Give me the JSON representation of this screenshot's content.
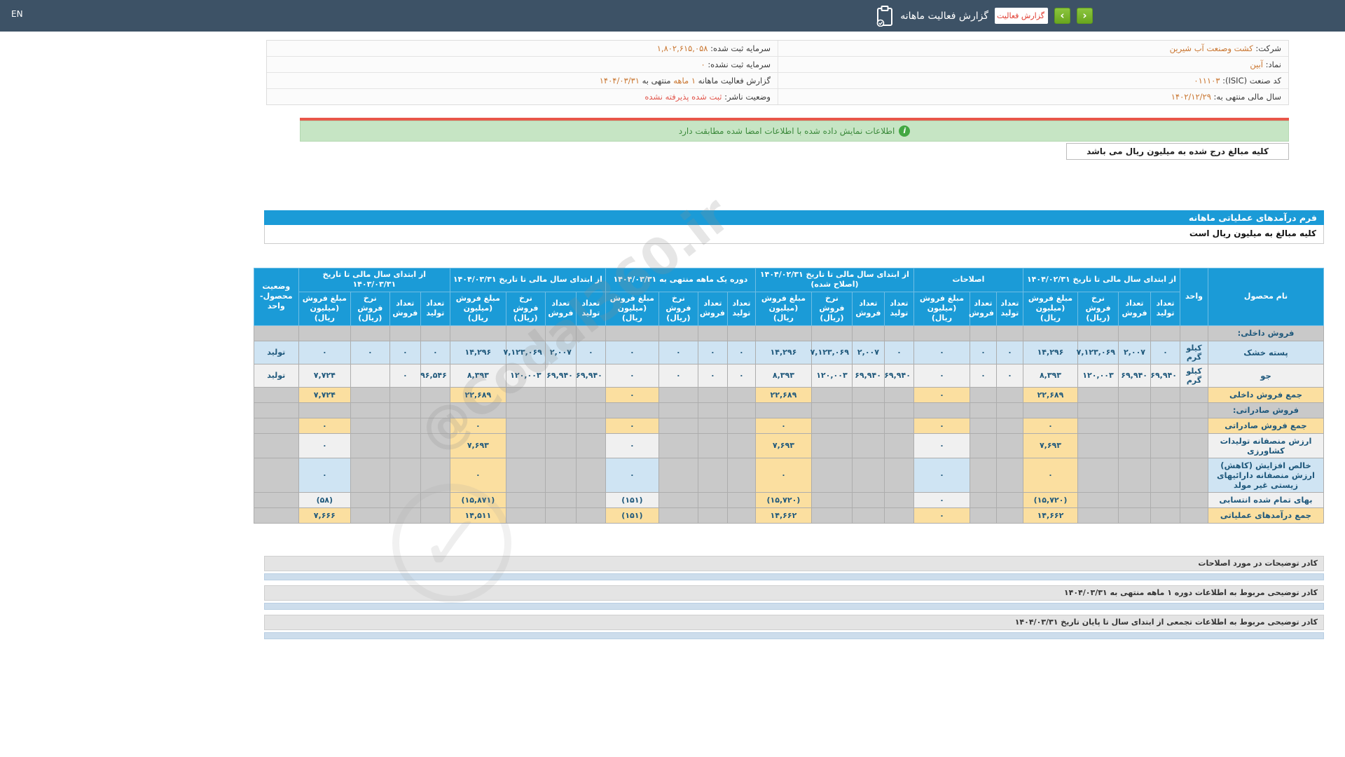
{
  "topbar": {
    "lang": "EN",
    "title": "گزارش فعالیت ماهانه",
    "dropdown_value": "گزارش فعالیت م",
    "prev_label": "‹",
    "next_label": "›"
  },
  "company": {
    "rows": [
      {
        "r_label": "شرکت:",
        "r_value": "کشت وصنعت آب شیرین",
        "l_label": "سرمایه ثبت شده:",
        "l_value": "۱,۸۰۲,۶۱۵,۰۵۸"
      },
      {
        "r_label": "نماد:",
        "r_value": "آبین",
        "l_label": "سرمایه ثبت نشده:",
        "l_value": "۰"
      },
      {
        "r_label": "کد صنعت (ISIC):",
        "r_value": "۰۱۱۱۰۳"
      },
      {
        "r_label": "سال مالی منتهی به:",
        "r_value": "۱۴۰۲/۱۲/۲۹",
        "l_label": "وضعیت ناشر:",
        "l_value": "ثبت شده پذیرفته نشده"
      }
    ],
    "report_label": "گزارش فعالیت ماهانه",
    "report_period": "۱ ماهه",
    "report_join": "منتهی به",
    "report_date": "۱۴۰۴/۰۳/۳۱"
  },
  "banner": {
    "text": "اطلاعات نمایش داده شده با اطلاعات امضا شده مطابقت دارد",
    "icon": "info-icon",
    "icon_glyph": "i"
  },
  "units_note": "کلیه مبالغ درج شده به میلیون ریال می باشد",
  "form": {
    "title": "فرم درآمدهای عملیاتی ماهانه",
    "subtitle": "کلیه مبالغ به میلیون ریال است"
  },
  "table": {
    "product_col": "نام محصول",
    "unit_col": "واحد",
    "status_col": "وضعیت محصول-واحد",
    "groups": [
      {
        "label": "از ابتدای سال مالی تا تاریخ ۱۴۰۴/۰۲/۳۱",
        "subs": [
          "تعداد تولید",
          "تعداد فروش",
          "نرخ فروش (ریال)",
          "مبلغ فروش (میلیون ریال)"
        ]
      },
      {
        "label": "اصلاحات",
        "subs": [
          "تعداد تولید",
          "تعداد فروش",
          "مبلغ فروش (میلیون ریال)"
        ]
      },
      {
        "label": "از ابتدای سال مالی تا تاریخ ۱۴۰۴/۰۲/۳۱ (اصلاح شده)",
        "subs": [
          "تعداد تولید",
          "تعداد فروش",
          "نرخ فروش (ریال)",
          "مبلغ فروش (میلیون ریال)"
        ]
      },
      {
        "label": "دوره یک ماهه منتهی به ۱۴۰۴/۰۳/۳۱",
        "subs": [
          "تعداد تولید",
          "تعداد فروش",
          "نرخ فروش (ریال)",
          "مبلغ فروش (میلیون ریال)"
        ]
      },
      {
        "label": "از ابتدای سال مالی تا تاریخ ۱۴۰۴/۰۳/۳۱",
        "subs": [
          "تعداد تولید",
          "تعداد فروش",
          "نرخ فروش (ریال)",
          "مبلغ فروش (میلیون ریال)"
        ]
      },
      {
        "label": "از ابتدای سال مالی تا تاریخ ۱۴۰۳/۰۳/۳۱",
        "subs": [
          "تعداد تولید",
          "تعداد فروش",
          "نرخ فروش (ریال)",
          "مبلغ فروش (میلیون ریال)"
        ]
      }
    ],
    "rows": [
      {
        "type": "section",
        "name": "فروش داخلی:"
      },
      {
        "type": "product",
        "name": "پسته خشک",
        "unit": "کیلو گرم",
        "status": "تولید",
        "bg": "blue",
        "cells": [
          "۰",
          "۲,۰۰۷",
          "۷,۱۲۳,۰۶۹",
          "۱۴,۲۹۶",
          "۰",
          "۰",
          "۰",
          "۰",
          "۲,۰۰۷",
          "۷,۱۲۳,۰۶۹",
          "۱۴,۲۹۶",
          "۰",
          "۰",
          "۰",
          "۰",
          "۰",
          "۲,۰۰۷",
          "۷,۱۲۳,۰۶۹",
          "۱۴,۲۹۶",
          "۰",
          "۰",
          "۰",
          "۰"
        ]
      },
      {
        "type": "product",
        "name": "جو",
        "unit": "کیلو گرم",
        "status": "تولید",
        "bg": "plain",
        "cells": [
          "۶۹,۹۴۰",
          "۶۹,۹۴۰",
          "۱۲۰,۰۰۳",
          "۸,۳۹۳",
          "۰",
          "۰",
          "۰",
          "۶۹,۹۴۰",
          "۶۹,۹۴۰",
          "۱۲۰,۰۰۳",
          "۸,۳۹۳",
          "۰",
          "۰",
          "۰",
          "۰",
          "۶۹,۹۴۰",
          "۶۹,۹۴۰",
          "۱۲۰,۰۰۳",
          "۸,۳۹۳",
          "۹۶,۵۴۶",
          "۰",
          "",
          "۷,۷۲۴"
        ]
      },
      {
        "type": "summary",
        "name": "جمع فروش داخلی",
        "label_bg": "yellow",
        "amount_bg": "yellow",
        "amounts": [
          "۲۲,۶۸۹",
          "۰",
          "۲۲,۶۸۹",
          "۰",
          "۲۲,۶۸۹",
          "۷,۷۲۴"
        ]
      },
      {
        "type": "section",
        "name": "فروش صادراتی:"
      },
      {
        "type": "summary",
        "name": "جمع فروش صادراتی",
        "label_bg": "yellow",
        "amount_bg": "yellow",
        "amounts": [
          "۰",
          "۰",
          "۰",
          "۰",
          "۰",
          "۰"
        ]
      },
      {
        "type": "summary",
        "name": "ارزش منصفانه تولیدات کشاورزی",
        "label_bg": "plain",
        "amount_bg": "mixed",
        "amounts": [
          "۷,۶۹۳",
          "۰",
          "۷,۶۹۳",
          "۰",
          "۷,۶۹۳",
          "۰"
        ]
      },
      {
        "type": "summary",
        "name": "خالص افزایش (کاهش) ارزش منصفانه دارائیهای زیستی غیر مولد",
        "label_bg": "blue",
        "amount_bg": "mixed",
        "amounts": [
          "۰",
          "۰",
          "۰",
          "۰",
          "۰",
          "۰"
        ]
      },
      {
        "type": "summary",
        "name": "بهای تمام شده انتسابی",
        "label_bg": "plain",
        "amount_bg": "mixed",
        "amounts": [
          "(۱۵,۷۲۰)",
          "۰",
          "(۱۵,۷۲۰)",
          "(۱۵۱)",
          "(۱۵,۸۷۱)",
          "(۵۸)"
        ]
      },
      {
        "type": "summary",
        "name": "جمع درآمدهای عملیاتی",
        "label_bg": "yellow",
        "amount_bg": "yellow",
        "amounts": [
          "۱۴,۶۶۲",
          "۰",
          "۱۴,۶۶۲",
          "(۱۵۱)",
          "۱۴,۵۱۱",
          "۷,۶۶۶"
        ]
      }
    ]
  },
  "notes": [
    {
      "label": "کادر توضیحات در مورد اصلاحات"
    },
    {
      "label": "کادر توضیحی مربوط به اطلاعات دوره ۱ ماهه منتهی به ۱۴۰۴/۰۳/۳۱"
    },
    {
      "label": "کادر توضیحی مربوط به اطلاعات تجمعی از ابتدای سال تا پایان تاریخ ۱۴۰۴/۰۳/۳۱"
    }
  ],
  "watermark": {
    "text": "@Codal360.ir",
    "check_glyph": "✓"
  }
}
